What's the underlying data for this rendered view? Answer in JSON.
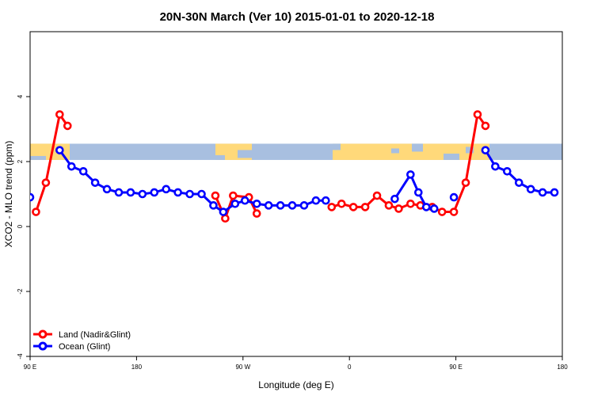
{
  "chart_data": {
    "type": "line",
    "title": "20N-30N March (Ver 10)   2015-01-01 to 2020-12-18",
    "xlabel": "Longitude (deg E)",
    "ylabel": "XCO2 - MLO trend (ppm)",
    "xlim": [
      -90,
      180
    ],
    "ylim": [
      -4,
      6
    ],
    "x_ticks": [
      {
        "value": -90,
        "label": "90 E"
      },
      {
        "value": -36,
        "label": "180"
      },
      {
        "value": 18,
        "label": "90 W"
      },
      {
        "value": 72,
        "label": "0"
      },
      {
        "value": 126,
        "label": "90 E"
      },
      {
        "value": 180,
        "label": "180"
      }
    ],
    "y_ticks": [
      -4,
      -2,
      0,
      2,
      4
    ],
    "grid": false,
    "legend_position": "bottom-left",
    "map_band": {
      "y_range": [
        2.05,
        2.55
      ],
      "land_color": "#ffd97a",
      "ocean_color": "#a8bfe0"
    },
    "series": [
      {
        "name": "Land (Nadir&Glint)",
        "color": "#ff0000",
        "segments": [
          [
            [
              -87,
              0.45
            ],
            [
              -82,
              1.35
            ],
            [
              -75,
              3.45
            ],
            [
              -71,
              3.1
            ]
          ],
          [
            [
              4,
              0.95
            ],
            [
              9,
              0.25
            ],
            [
              13,
              0.95
            ],
            [
              21,
              0.9
            ],
            [
              25,
              0.4
            ]
          ],
          [
            [
              63,
              0.6
            ],
            [
              68,
              0.7
            ],
            [
              74,
              0.6
            ],
            [
              80,
              0.6
            ],
            [
              86,
              0.95
            ],
            [
              92,
              0.65
            ],
            [
              97,
              0.55
            ],
            [
              103,
              0.7
            ],
            [
              108,
              0.65
            ],
            [
              114,
              0.6
            ],
            [
              119,
              0.45
            ],
            [
              125,
              0.45
            ],
            [
              131,
              1.35
            ],
            [
              137,
              3.45
            ],
            [
              141,
              3.1
            ]
          ]
        ]
      },
      {
        "name": "Ocean (Glint)",
        "color": "#0000ff",
        "segments": [
          [
            [
              -90,
              0.9
            ]
          ],
          [
            [
              -75,
              2.35
            ],
            [
              -69,
              1.85
            ],
            [
              -63,
              1.7
            ],
            [
              -57,
              1.35
            ],
            [
              -51,
              1.15
            ],
            [
              -45,
              1.05
            ],
            [
              -39,
              1.05
            ],
            [
              -33,
              1.0
            ],
            [
              -27,
              1.05
            ],
            [
              -21,
              1.15
            ],
            [
              -15,
              1.05
            ],
            [
              -9,
              1.0
            ],
            [
              -3,
              1.0
            ],
            [
              3,
              0.65
            ],
            [
              8,
              0.45
            ],
            [
              14,
              0.7
            ],
            [
              19,
              0.8
            ],
            [
              25,
              0.7
            ],
            [
              31,
              0.65
            ],
            [
              37,
              0.65
            ],
            [
              43,
              0.65
            ],
            [
              49,
              0.65
            ],
            [
              55,
              0.8
            ],
            [
              60,
              0.8
            ]
          ],
          [
            [
              95,
              0.85
            ],
            [
              103,
              1.6
            ],
            [
              107,
              1.05
            ],
            [
              111,
              0.6
            ],
            [
              115,
              0.55
            ]
          ],
          [
            [
              125,
              0.9
            ]
          ],
          [
            [
              141,
              2.35
            ],
            [
              146,
              1.85
            ],
            [
              152,
              1.7
            ],
            [
              158,
              1.35
            ],
            [
              164,
              1.15
            ],
            [
              170,
              1.05
            ],
            [
              176,
              1.05
            ]
          ]
        ]
      }
    ]
  }
}
